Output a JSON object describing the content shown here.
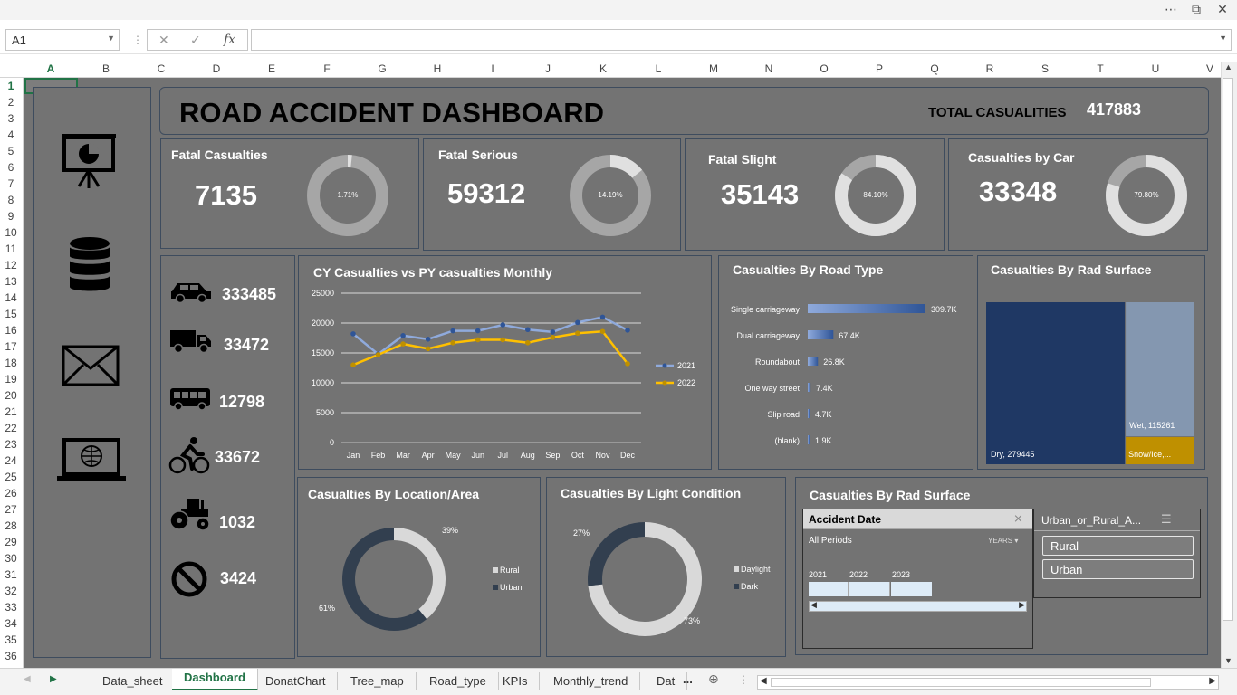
{
  "sheet_tabs": [
    "Data_sheet",
    "Dashboard",
    "DonatChart",
    "Tree_map",
    "Road_type",
    "KPIs",
    "Monthly_trend",
    "Dat"
  ],
  "tabs_more": "...",
  "active_tab": "Dashboard",
  "namebox": "A1",
  "fx_label": "fx",
  "column_headers": [
    "A",
    "B",
    "C",
    "D",
    "E",
    "F",
    "G",
    "H",
    "I",
    "J",
    "K",
    "L",
    "M",
    "N",
    "O",
    "P",
    "Q",
    "R",
    "S",
    "T",
    "U",
    "V"
  ],
  "row_headers": [
    "1",
    "2",
    "3",
    "4",
    "5",
    "6",
    "7",
    "8",
    "9",
    "10",
    "11",
    "12",
    "13",
    "14",
    "15",
    "16",
    "17",
    "18",
    "19",
    "20",
    "21",
    "22",
    "23",
    "24",
    "25",
    "26",
    "27",
    "28",
    "29",
    "30",
    "31",
    "32",
    "33",
    "34",
    "35",
    "36"
  ],
  "dashboard": {
    "title": "ROAD ACCIDENT DASHBOARD",
    "total_label": "TOTAL CASUALITIES",
    "total_value": "417883",
    "left_icons": [
      "presentation-chart-icon",
      "database-icon",
      "mail-icon",
      "laptop-globe-icon"
    ],
    "kpis": [
      {
        "title": "Fatal  Casualties",
        "value": "7135",
        "pct_label": "1.71%",
        "pct": 1.71
      },
      {
        "title": "Fatal  Serious",
        "value": "59312",
        "pct_label": "14.19%",
        "pct": 14.19
      },
      {
        "title": "Fatal  Slight",
        "value": "35143",
        "pct_label": "84.10%",
        "pct": 84.1
      },
      {
        "title": "Casualties by Car",
        "value": "33348",
        "pct_label": "79.80%",
        "pct": 79.8
      }
    ],
    "vehicles": [
      {
        "icon": "car-icon",
        "value": "333485"
      },
      {
        "icon": "truck-icon",
        "value": "33472"
      },
      {
        "icon": "bus-icon",
        "value": "12798"
      },
      {
        "icon": "bicycle-icon",
        "value": "33672"
      },
      {
        "icon": "tractor-icon",
        "value": "1032"
      },
      {
        "icon": "no-entry-icon",
        "value": "3424"
      }
    ],
    "slicer_panel_title": "Casualties By Rad Surface",
    "date_slicer": {
      "title": "Accident  Date",
      "periods": "All Periods",
      "unit": "YEARS",
      "years": [
        "2021",
        "2022",
        "2023"
      ]
    },
    "area_slicer": {
      "title": "Urban_or_Rural_A...",
      "items": [
        "Rural",
        "Urban"
      ]
    }
  },
  "colors": {
    "dark_navy": "#1f3864",
    "light_gray": "#d9d9d9",
    "mid_gray": "#a6a6a6",
    "series_2021": "#8faadc",
    "series_2022": "#ffc000",
    "gold": "#bf9000",
    "blue_steel": "#8497b0",
    "excel_green": "#217346"
  },
  "chart_data": [
    {
      "type": "line",
      "title": "CY Casualties vs PY casualties Monthly",
      "categories": [
        "Jan",
        "Feb",
        "Mar",
        "Apr",
        "May",
        "Jun",
        "Jul",
        "Aug",
        "Sep",
        "Oct",
        "Nov",
        "Dec"
      ],
      "series": [
        {
          "name": "2021",
          "values": [
            18200,
            14800,
            17900,
            17300,
            18700,
            18700,
            19700,
            18900,
            18500,
            20100,
            21000,
            18800
          ]
        },
        {
          "name": "2022",
          "values": [
            13000,
            14700,
            16500,
            15700,
            16700,
            17200,
            17200,
            16700,
            17600,
            18300,
            18600,
            13200
          ]
        }
      ],
      "yticks": [
        "0",
        "5000",
        "10000",
        "15000",
        "20000",
        "25000"
      ],
      "ylim": [
        0,
        25000
      ],
      "legend": "right"
    },
    {
      "type": "bar",
      "title": "Casualties By Road Type",
      "categories": [
        "Single carriageway",
        "Dual carriageway",
        "Roundabout",
        "One way street",
        "Slip road",
        "(blank)"
      ],
      "values": [
        309.7,
        67.4,
        26.8,
        7.4,
        4.7,
        1.9
      ],
      "labels": [
        "309.7K",
        "67.4K",
        "26.8K",
        "7.4K",
        "4.7K",
        "1.9K"
      ]
    },
    {
      "type": "treemap",
      "title": "Casualties By Rad Surface",
      "categories": [
        "Dry",
        "Wet",
        "Snow/Ice,..."
      ],
      "values": [
        279445,
        115261,
        23177
      ],
      "labels": [
        "Dry, 279445",
        "Wet, 115261",
        "Snow/Ice,..."
      ]
    },
    {
      "type": "pie",
      "title": "Casualties By  Location/Area",
      "categories": [
        "Rural",
        "Urban"
      ],
      "values": [
        39,
        61
      ],
      "labels": [
        "39%",
        "61%"
      ]
    },
    {
      "type": "pie",
      "title": "Casualties By Light Condition",
      "categories": [
        "Daylight",
        "Dark"
      ],
      "values": [
        73,
        27
      ],
      "labels": [
        "73%",
        "27%"
      ]
    }
  ]
}
